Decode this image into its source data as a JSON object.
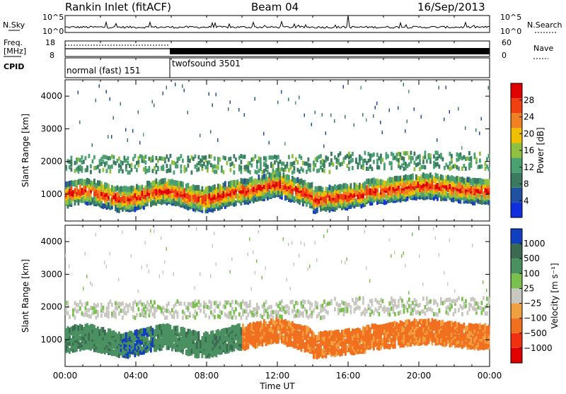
{
  "header": {
    "station": "Rankin Inlet (fitACF)",
    "beam": "Beam 04",
    "date": "16/Sep/2013"
  },
  "strip": {
    "nsky_label": "N.Sky",
    "nsearch_label": "N.Search",
    "freq_label": "Freq.",
    "freq_unit": "[MHz]",
    "nave_label": "Nave",
    "cpid_label": "CPID",
    "left_ticks_top": [
      "10^5",
      "10^0"
    ],
    "right_ticks_top": [
      "10^5",
      "10^0"
    ],
    "left_ticks_freq": [
      "18",
      "8"
    ],
    "right_ticks_nave": [
      "60",
      "0"
    ],
    "cpid_segments": [
      {
        "label": "normal (fast) 151",
        "start_hour": 0,
        "end_hour": 6
      },
      {
        "label": "twofsound 3501",
        "start_hour": 6,
        "end_hour": 24
      }
    ]
  },
  "colors": {
    "power_scale": [
      "#1030e0",
      "#2050a0",
      "#3a7a60",
      "#4aa070",
      "#90c040",
      "#f0c000",
      "#f08020",
      "#f04010",
      "#e00000"
    ],
    "velocity_scale": [
      "#1040c0",
      "#3a6a50",
      "#4a9060",
      "#7ac050",
      "#c8c8c0",
      "#f0a040",
      "#f07020",
      "#f03010",
      "#e00000"
    ]
  },
  "chart_data": [
    {
      "type": "heatmap",
      "name": "power",
      "xlabel": "",
      "ylabel": "Slant Range [km]",
      "xlim_hours": [
        0,
        24
      ],
      "ylim_km": [
        180,
        4500
      ],
      "y_ticks": [
        "1000",
        "2000",
        "3000",
        "4000"
      ],
      "colorbar": {
        "label": "Power [dB]",
        "ticks": [
          "4",
          "8",
          "12",
          "16",
          "20",
          "24",
          "28"
        ],
        "range": [
          0,
          32
        ]
      }
    },
    {
      "type": "heatmap",
      "name": "velocity",
      "xlabel": "Time UT",
      "ylabel": "Slant Range [km]",
      "xlim_hours": [
        0,
        24
      ],
      "ylim_km": [
        180,
        4500
      ],
      "x_ticks": [
        "00:00",
        "04:00",
        "08:00",
        "12:00",
        "16:00",
        "20:00",
        "00:00"
      ],
      "y_ticks": [
        "1000",
        "2000",
        "3000",
        "4000"
      ],
      "colorbar": {
        "label": "Velocity [m s⁻¹]",
        "ticks": [
          "1000",
          "500",
          "100",
          "25",
          "−25",
          "−100",
          "−500",
          "−1000"
        ]
      }
    }
  ]
}
